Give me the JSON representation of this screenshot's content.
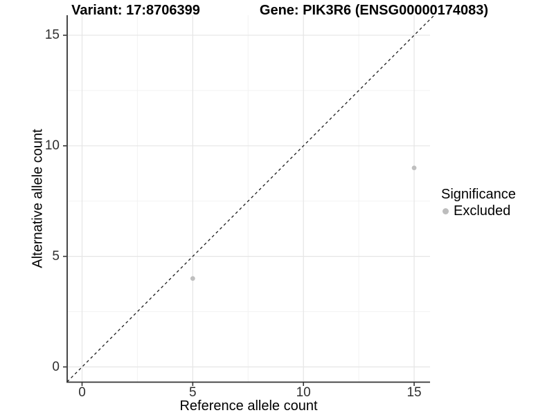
{
  "chart_data": {
    "type": "scatter",
    "title_left": "Variant: 17:8706399",
    "title_right": "Gene: PIK3R6 (ENSG00000174083)",
    "xlabel": "Reference allele count",
    "ylabel": "Alternative allele count",
    "xlim": [
      -0.675,
      15.95
    ],
    "ylim": [
      -0.675,
      15.95
    ],
    "xticks": [
      0,
      5,
      10,
      15
    ],
    "yticks": [
      0,
      5,
      10,
      15
    ],
    "xticks_minor": [
      2.5,
      7.5,
      12.5
    ],
    "yticks_minor": [
      2.5,
      7.5,
      12.5
    ],
    "grid": "major+minor",
    "reference_line": {
      "type": "identity",
      "style": "dashed",
      "slope": 1,
      "intercept": 0
    },
    "series": [
      {
        "name": "Excluded",
        "marker": "circle",
        "color": "#bfbfbf",
        "points": [
          {
            "x": 5,
            "y": 4
          },
          {
            "x": 15,
            "y": 9
          }
        ]
      }
    ],
    "legend": {
      "title": "Significance",
      "position": "right",
      "items": [
        {
          "label": "Excluded",
          "color": "#bdbdbd"
        }
      ]
    }
  },
  "colors": {
    "background": "#ffffff",
    "grid_major": "#e5e5e5",
    "grid_minor": "#f2f2f2",
    "axis": "#333333",
    "tick": "#333333",
    "dash_line": "#1a1a1a",
    "point": "#bfbfbf",
    "text": "#000000"
  }
}
